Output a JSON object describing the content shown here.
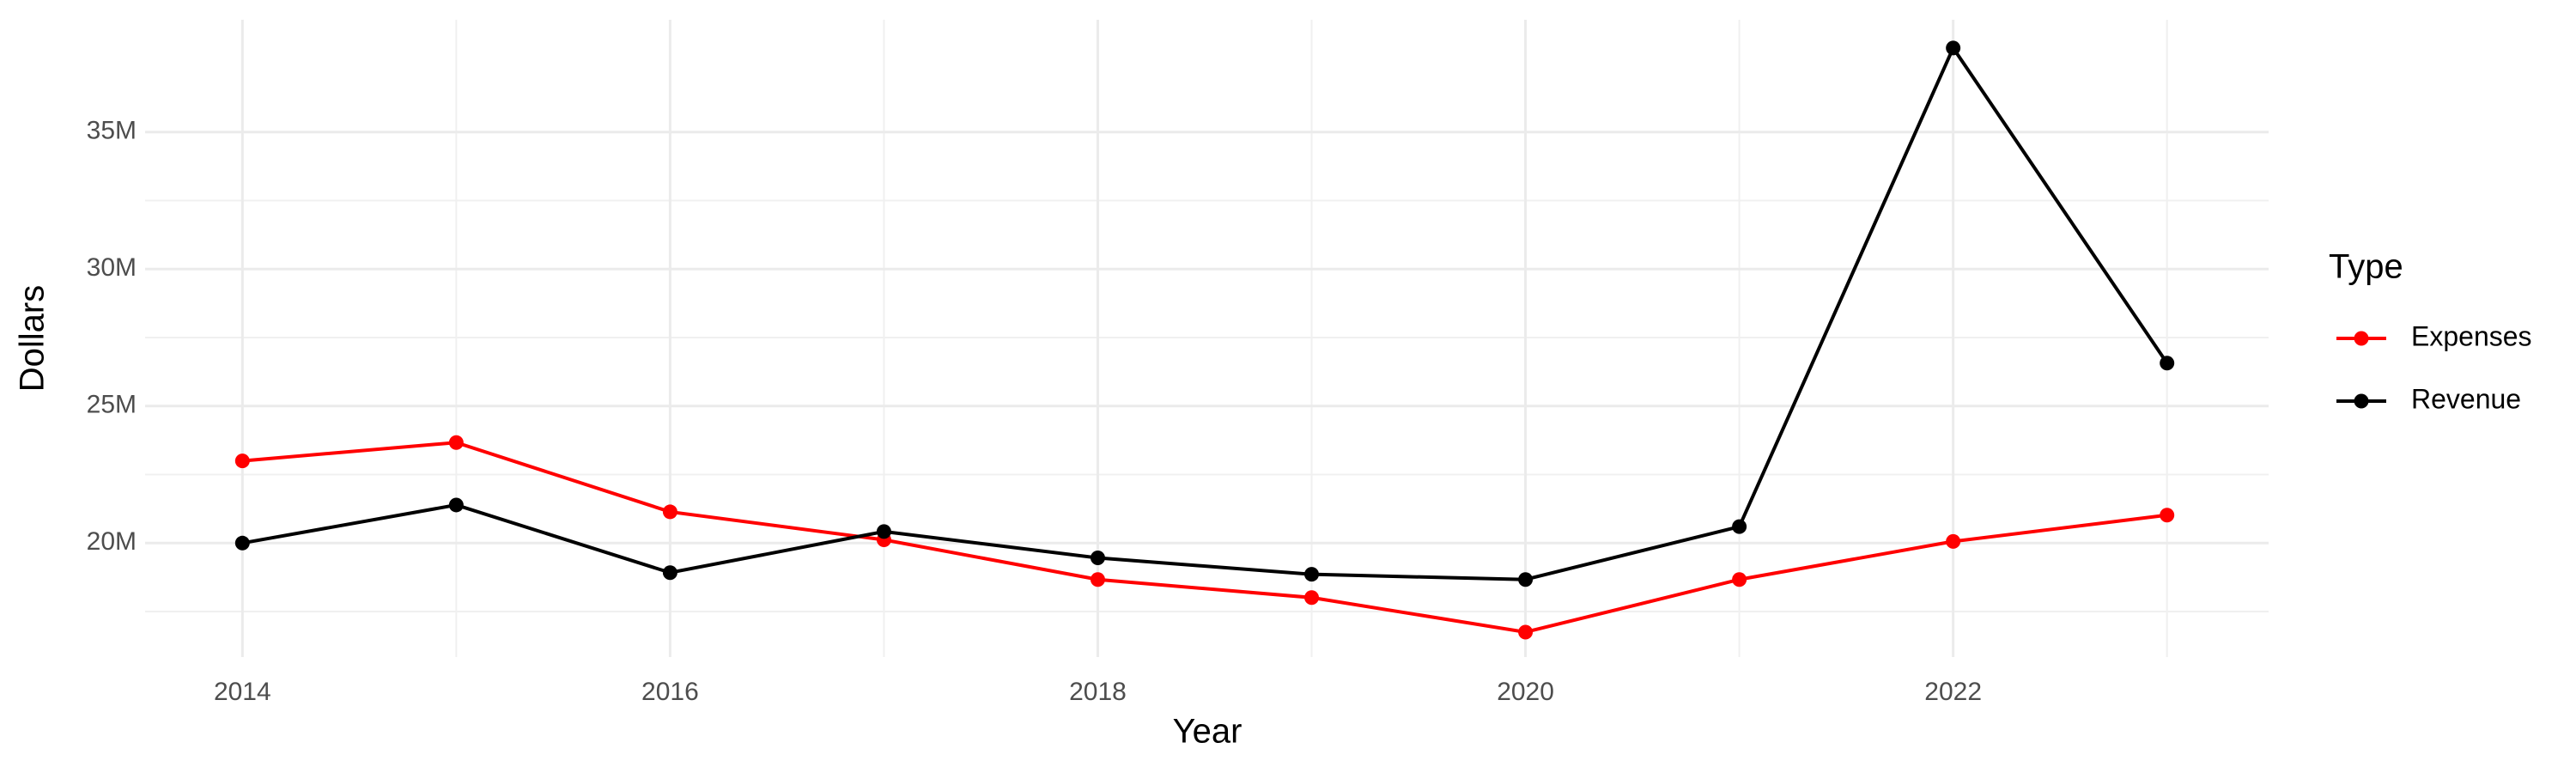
{
  "chart_data": {
    "type": "line",
    "x": [
      2014,
      2015,
      2016,
      2017,
      2018,
      2019,
      2020,
      2021,
      2022,
      2023
    ],
    "series": [
      {
        "name": "Expenses",
        "color": "#ff0000",
        "values": [
          23000000,
          23670000,
          21140000,
          20120000,
          18670000,
          18010000,
          16750000,
          18670000,
          20060000,
          21020000
        ]
      },
      {
        "name": "Revenue",
        "color": "#000000",
        "values": [
          20000000,
          21390000,
          18920000,
          20420000,
          19460000,
          18860000,
          18670000,
          20600000,
          38070000,
          26570000
        ]
      }
    ],
    "x_label": "Year",
    "y_label": "Dollars",
    "legend_title": "Type",
    "legend_position": "right",
    "xlim": [
      2013.545,
      2023.475
    ],
    "xticks": [
      2014,
      2016,
      2018,
      2020,
      2022
    ],
    "ylim": [
      15840000,
      39100000
    ],
    "yticks": [
      {
        "value": 20000000,
        "label": "20M"
      },
      {
        "value": 25000000,
        "label": "25M"
      },
      {
        "value": 30000000,
        "label": "30M"
      },
      {
        "value": 35000000,
        "label": "35M"
      }
    ],
    "grid": true
  }
}
